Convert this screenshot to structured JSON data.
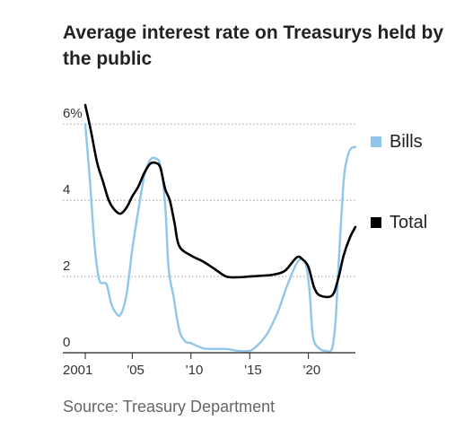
{
  "chart_data": {
    "type": "line",
    "title": "Average interest rate on Treasurys held by the public",
    "source": "Source: Treasury Department",
    "xlabel": "",
    "ylabel": "",
    "xlim": [
      2001.0,
      2024.0
    ],
    "ylim": [
      0,
      6.5
    ],
    "y_ticks": [
      {
        "value": 0,
        "label": "0"
      },
      {
        "value": 2,
        "label": "2"
      },
      {
        "value": 4,
        "label": "4"
      },
      {
        "value": 6,
        "label": "6%"
      }
    ],
    "x_ticks": [
      {
        "value": 2001.0,
        "label": "2001"
      },
      {
        "value": 2005.0,
        "label": "'05"
      },
      {
        "value": 2010.0,
        "label": "'10"
      },
      {
        "value": 2015.0,
        "label": "'15"
      },
      {
        "value": 2020.0,
        "label": "'20"
      }
    ],
    "grid": true,
    "legend_position": "right",
    "series": [
      {
        "name": "Bills",
        "color": "#8fc6ea",
        "x": [
          2001.0,
          2001.4,
          2001.8,
          2002.2,
          2002.8,
          2003.2,
          2003.6,
          2004.0,
          2004.5,
          2005.0,
          2005.5,
          2006.0,
          2006.5,
          2007.0,
          2007.4,
          2007.8,
          2008.1,
          2008.5,
          2009.0,
          2009.5,
          2010.0,
          2011.0,
          2012.0,
          2013.0,
          2014.0,
          2015.0,
          2015.5,
          2016.0,
          2016.5,
          2017.0,
          2017.5,
          2018.0,
          2018.5,
          2019.0,
          2019.4,
          2019.8,
          2020.1,
          2020.4,
          2021.0,
          2021.5,
          2022.0,
          2022.3,
          2022.6,
          2023.0,
          2023.3,
          2023.6,
          2024.0
        ],
        "values": [
          6.0,
          4.5,
          2.8,
          1.9,
          1.8,
          1.3,
          1.05,
          1.0,
          1.5,
          2.7,
          3.7,
          4.6,
          5.05,
          5.1,
          4.9,
          3.9,
          2.2,
          1.5,
          0.6,
          0.3,
          0.25,
          0.12,
          0.1,
          0.1,
          0.05,
          0.05,
          0.15,
          0.3,
          0.5,
          0.8,
          1.15,
          1.6,
          2.0,
          2.35,
          2.45,
          2.3,
          1.6,
          0.4,
          0.1,
          0.05,
          0.1,
          0.8,
          2.5,
          4.5,
          5.1,
          5.35,
          5.4
        ]
      },
      {
        "name": "Total",
        "color": "#000000",
        "x": [
          2001.0,
          2001.5,
          2002.0,
          2002.5,
          2003.0,
          2003.5,
          2004.0,
          2004.5,
          2005.0,
          2005.5,
          2006.0,
          2006.5,
          2007.0,
          2007.4,
          2007.8,
          2008.2,
          2008.6,
          2009.0,
          2010.0,
          2011.0,
          2012.0,
          2013.0,
          2014.0,
          2015.0,
          2016.0,
          2017.0,
          2018.0,
          2019.0,
          2019.5,
          2020.0,
          2020.5,
          2021.0,
          2022.0,
          2022.5,
          2023.0,
          2023.5,
          2024.0
        ],
        "values": [
          6.5,
          5.8,
          5.0,
          4.5,
          4.0,
          3.75,
          3.65,
          3.8,
          4.1,
          4.35,
          4.7,
          4.95,
          4.98,
          4.85,
          4.3,
          4.0,
          3.4,
          2.8,
          2.55,
          2.4,
          2.2,
          2.0,
          1.98,
          2.0,
          2.02,
          2.05,
          2.15,
          2.5,
          2.45,
          2.25,
          1.7,
          1.5,
          1.5,
          1.9,
          2.55,
          3.0,
          3.3
        ]
      }
    ]
  }
}
